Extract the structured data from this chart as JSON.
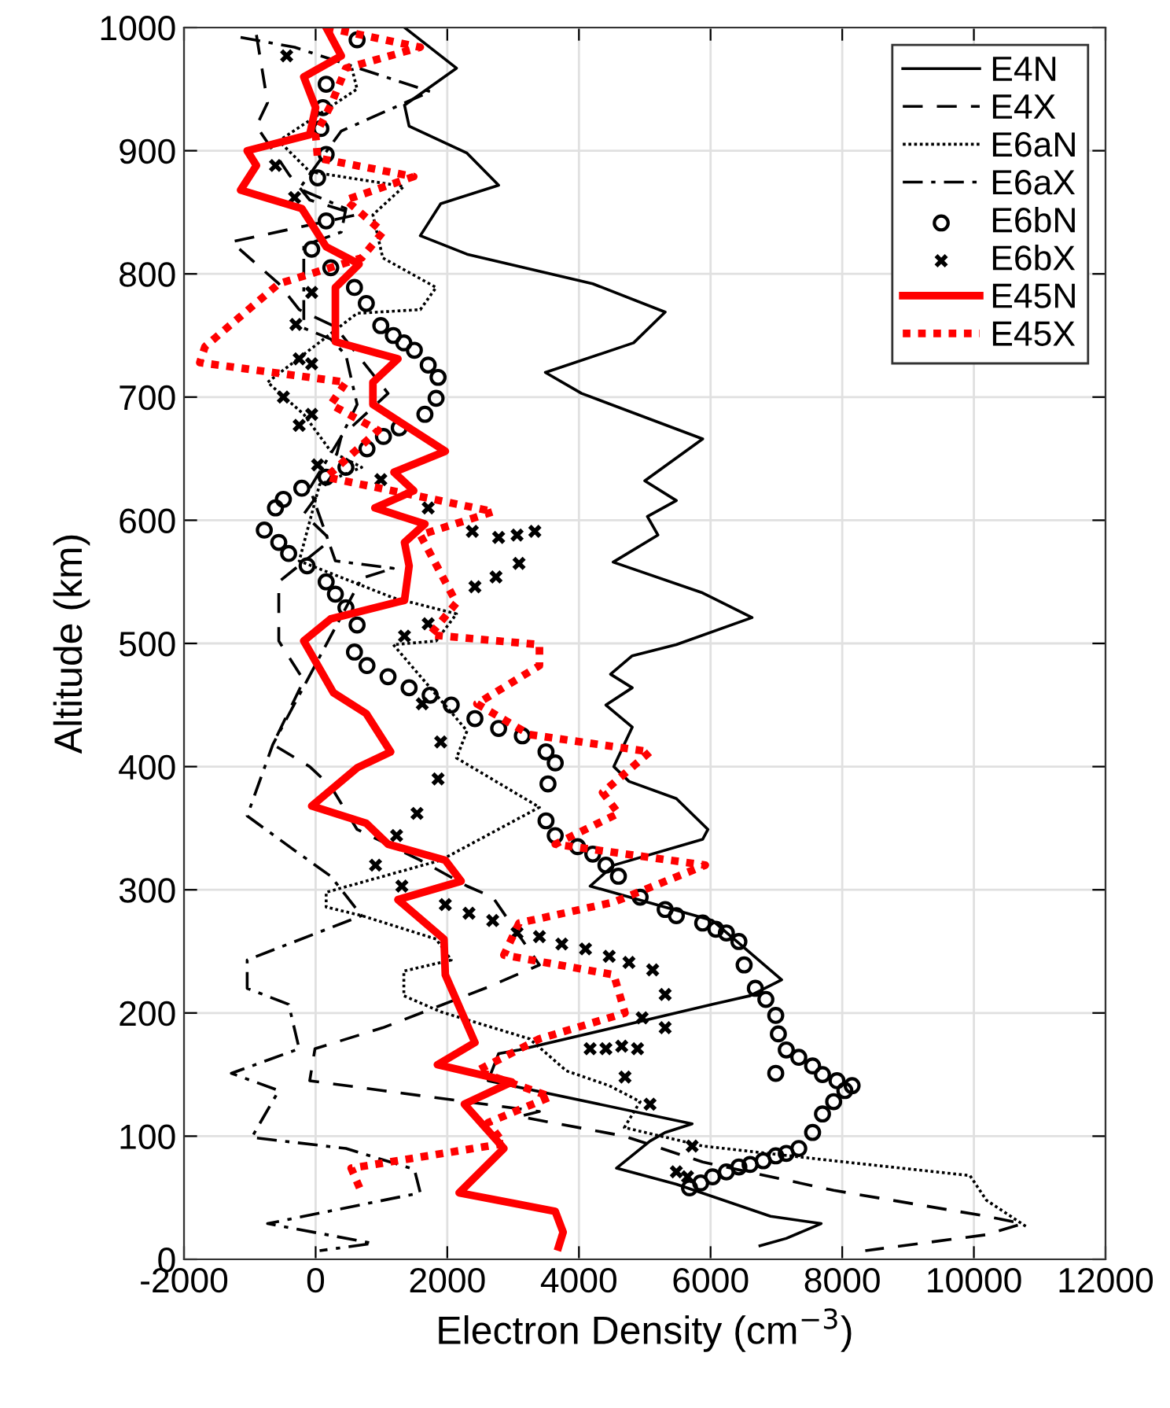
{
  "chart_data": {
    "type": "line",
    "xlabel": "Electron Density (cm$^{−3}$)",
    "ylabel": "Altitude (km)",
    "xlim": [
      -2000,
      12000
    ],
    "xticks": [
      -2000,
      0,
      2000,
      4000,
      6000,
      8000,
      10000,
      12000
    ],
    "ylim": [
      0,
      1000
    ],
    "yticks": [
      0,
      100,
      200,
      300,
      400,
      500,
      600,
      700,
      800,
      900,
      1000
    ],
    "grid": true,
    "legend": "top right",
    "series": [
      {
        "name": "E4N",
        "color": "#000000",
        "line_style": "solid",
        "marker": "none",
        "x": [
          1350,
          2140,
          1350,
          1420,
          2300,
          2780,
          1900,
          1590,
          2300,
          4210,
          5310,
          4830,
          3490,
          4040,
          5880,
          5000,
          5480,
          5040,
          5200,
          4520,
          5880,
          6630,
          5480,
          4810,
          4480,
          4810,
          4410,
          4810,
          4530,
          4760,
          5480,
          5960,
          5880,
          4530,
          4170,
          6030,
          7080,
          6600,
          6030,
          3090,
          2780,
          2620,
          5720,
          5310,
          5080,
          4570,
          5480,
          6910,
          7680,
          7150,
          6750
        ],
        "values": [
          1000,
          967,
          937,
          920,
          898,
          872,
          857,
          831,
          816,
          792,
          769,
          744,
          720,
          703,
          666,
          632,
          616,
          603,
          588,
          566,
          541,
          521,
          499,
          490,
          475,
          464,
          450,
          432,
          400,
          388,
          374,
          349,
          341,
          320,
          303,
          275,
          227,
          214,
          207,
          170,
          167,
          145,
          110,
          103,
          96,
          74,
          61,
          35,
          29,
          17,
          11
        ]
      },
      {
        "name": "E4X",
        "color": "#000000",
        "line_style": "dashed",
        "marker": "none",
        "x": [
          -900,
          -730,
          -900,
          -410,
          -90,
          630,
          -1280,
          -560,
          -250,
          300,
          1100,
          390,
          230,
          -180,
          230,
          -560,
          -560,
          -560,
          -180,
          -650,
          -90,
          230,
          630,
          1590,
          2300,
          2690,
          3400,
          2620,
          1020,
          -10,
          -90,
          1020,
          3400,
          3090,
          4690,
          5880,
          7870,
          10190,
          10740,
          10190,
          8350
        ],
        "values": [
          994,
          939,
          920,
          881,
          860,
          848,
          826,
          792,
          771,
          757,
          703,
          668,
          635,
          605,
          584,
          550,
          520,
          502,
          470,
          418,
          400,
          384,
          349,
          324,
          303,
          294,
          239,
          221,
          188,
          171,
          145,
          137,
          120,
          116,
          100,
          79,
          56,
          35,
          29,
          20,
          7
        ]
      },
      {
        "name": "E6aN",
        "color": "#000000",
        "line_style": "dotted",
        "marker": "none",
        "x": [
          550,
          630,
          -560,
          -90,
          1340,
          870,
          1020,
          1830,
          1590,
          630,
          -730,
          -180,
          230,
          700,
          60,
          -250,
          1180,
          2140,
          1830,
          1180,
          2300,
          2140,
          3400,
          1900,
          160,
          160,
          700,
          1830,
          2060,
          1340,
          1340,
          1900,
          3250,
          3810,
          4460,
          4930,
          4690,
          5880,
          7870,
          9940,
          10190,
          10810
        ],
        "values": [
          967,
          950,
          908,
          883,
          871,
          848,
          813,
          789,
          771,
          768,
          712,
          686,
          656,
          643,
          629,
          567,
          537,
          524,
          502,
          499,
          429,
          407,
          367,
          324,
          298,
          286,
          279,
          260,
          243,
          234,
          214,
          201,
          179,
          153,
          141,
          128,
          107,
          92,
          80,
          68,
          48,
          26
        ]
      },
      {
        "name": "E6aX",
        "color": "#000000",
        "line_style": "dashdot",
        "marker": "none",
        "x": [
          -1140,
          -320,
          1740,
          390,
          -250,
          460,
          390,
          -180,
          -180,
          230,
          460,
          630,
          390,
          -90,
          300,
          1180,
          700,
          -650,
          -1040,
          -320,
          230,
          700,
          -1040,
          -1040,
          -410,
          -250,
          -1280,
          -560,
          -970,
          460,
          1500,
          1590,
          -730,
          870,
          60
        ],
        "values": [
          992,
          984,
          948,
          916,
          869,
          853,
          834,
          823,
          756,
          747,
          734,
          694,
          668,
          626,
          567,
          561,
          553,
          418,
          360,
          332,
          311,
          279,
          243,
          220,
          207,
          171,
          151,
          137,
          99,
          90,
          73,
          54,
          29,
          13,
          7
        ]
      },
      {
        "name": "E6bN",
        "type": "scatter",
        "color": "#000000",
        "marker": "circle",
        "x": [
          630,
          160,
          110,
          80,
          160,
          30,
          160,
          -60,
          230,
          590,
          770,
          990,
          1180,
          1340,
          1500,
          1710,
          1860,
          1830,
          1660,
          1270,
          1030,
          780,
          460,
          160,
          -210,
          -490,
          -610,
          -780,
          -560,
          -410,
          -130,
          160,
          300,
          460,
          630,
          590,
          780,
          1100,
          1420,
          1740,
          2060,
          2420,
          2780,
          3140,
          3500,
          3640,
          3530,
          3500,
          3640,
          3980,
          4210,
          4410,
          4600,
          4930,
          5310,
          5480,
          5880,
          6080,
          6240,
          6430,
          6510,
          6680,
          6840,
          6990,
          7030,
          7150,
          7340,
          7550,
          7700,
          7920,
          8150,
          8040,
          7870,
          7700,
          7550,
          7340,
          7150,
          6990,
          6800,
          6600,
          6430,
          6240,
          6030,
          5850,
          5680,
          6990
        ],
        "values": [
          990,
          954,
          935,
          918,
          897,
          878,
          843,
          820,
          805,
          789,
          776,
          758,
          750,
          744,
          738,
          726,
          716,
          699,
          686,
          675,
          668,
          658,
          643,
          635,
          626,
          617,
          610,
          592,
          582,
          573,
          563,
          550,
          540,
          529,
          515,
          493,
          482,
          473,
          464,
          458,
          450,
          439,
          431,
          425,
          412,
          403,
          386,
          356,
          344,
          335,
          329,
          320,
          311,
          294,
          284,
          279,
          273,
          268,
          265,
          258,
          239,
          220,
          211,
          198,
          183,
          170,
          164,
          157,
          150,
          145,
          141,
          137,
          128,
          118,
          103,
          90,
          86,
          84,
          80,
          77,
          75,
          71,
          67,
          62,
          58,
          151
        ]
      },
      {
        "name": "E6bX",
        "type": "scatter",
        "color": "#000000",
        "marker": "cross",
        "x": [
          -440,
          -610,
          -320,
          -60,
          -300,
          -250,
          -60,
          -490,
          -60,
          -250,
          30,
          990,
          1710,
          2380,
          2780,
          3060,
          3330,
          3090,
          2740,
          2420,
          1710,
          1350,
          1620,
          1900,
          1860,
          1540,
          1230,
          910,
          1310,
          1970,
          2330,
          2690,
          3060,
          3400,
          3740,
          4100,
          4460,
          4760,
          5120,
          5310,
          4960,
          5310,
          4170,
          4410,
          4650,
          4890,
          4700,
          5080,
          5720,
          5480,
          5650
        ],
        "values": [
          977,
          888,
          862,
          785,
          759,
          731,
          727,
          700,
          686,
          677,
          645,
          633,
          610,
          591,
          586,
          588,
          591,
          565,
          554,
          546,
          516,
          506,
          451,
          420,
          390,
          362,
          344,
          320,
          303,
          288,
          281,
          275,
          265,
          262,
          256,
          252,
          246,
          241,
          235,
          215,
          196,
          188,
          171,
          171,
          173,
          171,
          148,
          126,
          92,
          71,
          67
        ]
      },
      {
        "name": "E45N",
        "color": "#ff0000",
        "line_style": "solid",
        "marker": "none",
        "x": [
          160,
          390,
          -180,
          0,
          -90,
          -1040,
          -900,
          -1140,
          -210,
          160,
          660,
          300,
          300,
          1250,
          870,
          870,
          1970,
          1190,
          1490,
          900,
          1660,
          1350,
          1420,
          1350,
          230,
          -180,
          270,
          770,
          1140,
          630,
          -60,
          770,
          1100,
          1970,
          2210,
          1250,
          1950,
          1970,
          2420,
          1850,
          2980,
          2260,
          2860,
          2180,
          3640,
          3760,
          3690
        ],
        "values": [
          1000,
          977,
          960,
          935,
          913,
          900,
          888,
          868,
          853,
          822,
          808,
          789,
          745,
          731,
          712,
          694,
          656,
          639,
          624,
          610,
          597,
          582,
          563,
          535,
          520,
          502,
          460,
          443,
          412,
          399,
          368,
          354,
          337,
          324,
          307,
          292,
          260,
          231,
          176,
          158,
          144,
          126,
          90,
          54,
          39,
          22,
          10
        ]
      },
      {
        "name": "E45X",
        "color": "#ff0000",
        "line_style": "dotted",
        "marker": "none",
        "x": [
          160,
          1590,
          460,
          230,
          0,
          30,
          1490,
          460,
          1020,
          700,
          -560,
          -1680,
          -1760,
          -650,
          460,
          230,
          950,
          160,
          2700,
          1590,
          2140,
          1740,
          3400,
          3400,
          2450,
          3250,
          5080,
          4360,
          4600,
          3640,
          5920,
          4530,
          3090,
          2860,
          4530,
          4700,
          3400,
          2450,
          3570,
          2620,
          2860,
          540,
          700
        ],
        "values": [
          1000,
          984,
          967,
          937,
          913,
          894,
          879,
          860,
          834,
          813,
          792,
          741,
          728,
          720,
          712,
          694,
          673,
          635,
          607,
          588,
          533,
          507,
          499,
          482,
          451,
          426,
          412,
          379,
          362,
          337,
          320,
          290,
          273,
          247,
          231,
          200,
          179,
          153,
          132,
          111,
          94,
          74,
          54
        ]
      }
    ]
  }
}
